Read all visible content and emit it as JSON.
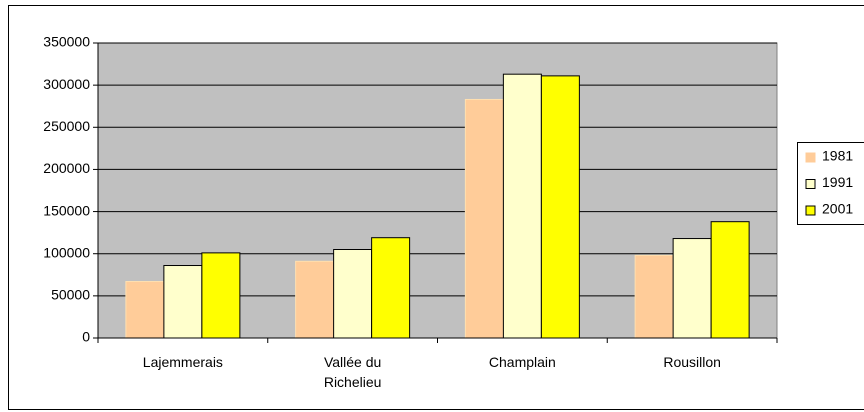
{
  "chart_data": {
    "type": "bar",
    "categories": [
      "Lajemmerais",
      "Vallée du Richelieu",
      "Champlain",
      "Rousillon"
    ],
    "series": [
      {
        "name": "1981",
        "color": "#ffcc99",
        "values": [
          67000,
          91000,
          283000,
          98000
        ]
      },
      {
        "name": "1991",
        "color": "#ffffcc",
        "values": [
          86000,
          105000,
          313000,
          118000
        ]
      },
      {
        "name": "2001",
        "color": "#ffff00",
        "values": [
          101000,
          119000,
          311000,
          138000
        ]
      }
    ],
    "ylim": [
      0,
      350000
    ],
    "yticks": [
      0,
      50000,
      100000,
      150000,
      200000,
      250000,
      300000,
      350000
    ],
    "grid": true,
    "legend": "right",
    "plot_background": "#c0c0c0"
  }
}
